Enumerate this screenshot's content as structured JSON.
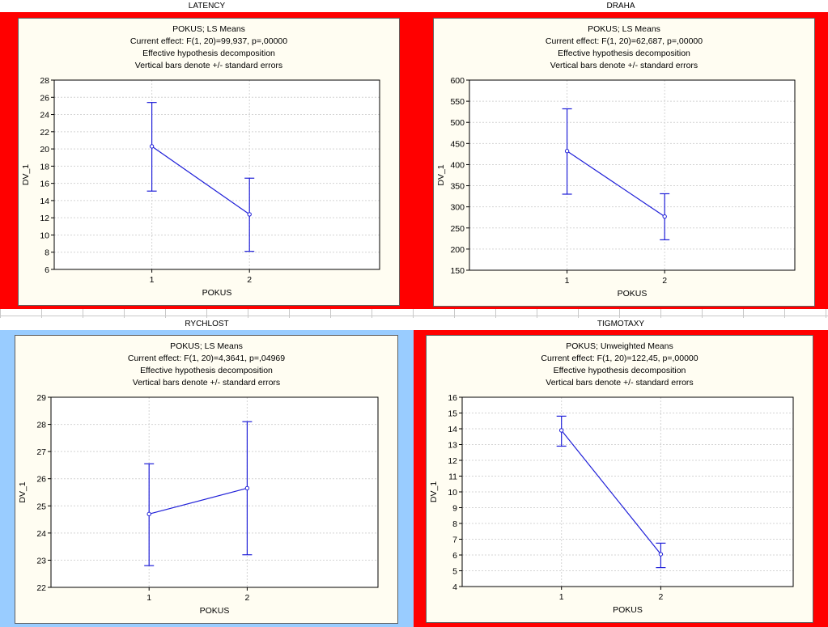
{
  "colors": {
    "frame_red": "#ff0000",
    "frame_blue": "#99ccff",
    "series_line": "#1f1fd8",
    "panel_bg": "#fffdf2"
  },
  "chart_data": [
    {
      "type": "line",
      "sheet_label": "LATENCY",
      "header_lines": [
        "POKUS; LS Means",
        "Current effect: F(1, 20)=99,937, p=,00000",
        "Effective hypothesis decomposition",
        "Vertical bars denote +/- standard errors"
      ],
      "xlabel": "POKUS",
      "ylabel": "DV_1",
      "categories": [
        "1",
        "2"
      ],
      "values": [
        20.3,
        12.4
      ],
      "error_low": [
        15.1,
        8.1
      ],
      "error_high": [
        25.4,
        16.6
      ],
      "ylim": [
        6,
        28
      ],
      "yticks": [
        6,
        8,
        10,
        12,
        14,
        16,
        18,
        20,
        22,
        24,
        26,
        28
      ],
      "frame_color": "#ff0000",
      "grid": true
    },
    {
      "type": "line",
      "sheet_label": "DRAHA",
      "header_lines": [
        "POKUS; LS Means",
        "Current effect: F(1, 20)=62,687, p=,00000",
        "Effective hypothesis decomposition",
        "Vertical bars denote +/- standard errors"
      ],
      "xlabel": "POKUS",
      "ylabel": "DV_1",
      "categories": [
        "1",
        "2"
      ],
      "values": [
        432,
        277
      ],
      "error_low": [
        330,
        222
      ],
      "error_high": [
        532,
        331
      ],
      "ylim": [
        150,
        600
      ],
      "yticks": [
        150,
        200,
        250,
        300,
        350,
        400,
        450,
        500,
        550,
        600
      ],
      "frame_color": "#ff0000",
      "grid": true
    },
    {
      "type": "line",
      "sheet_label": "RYCHLOST",
      "header_lines": [
        "POKUS; LS Means",
        "Current effect: F(1, 20)=4,3641, p=,04969",
        "Effective hypothesis decomposition",
        "Vertical bars denote +/- standard errors"
      ],
      "xlabel": "POKUS",
      "ylabel": "DV_1",
      "categories": [
        "1",
        "2"
      ],
      "values": [
        24.7,
        25.65
      ],
      "error_low": [
        22.8,
        23.2
      ],
      "error_high": [
        26.55,
        28.1
      ],
      "ylim": [
        22,
        29
      ],
      "yticks": [
        22,
        23,
        24,
        25,
        26,
        27,
        28,
        29
      ],
      "frame_color": "#99ccff",
      "grid": true
    },
    {
      "type": "line",
      "sheet_label": "TIGMOTAXY",
      "header_lines": [
        "POKUS; Unweighted Means",
        "Current effect: F(1, 20)=122,45, p=,00000",
        "Effective hypothesis decomposition",
        "Vertical bars denote +/- standard errors"
      ],
      "xlabel": "POKUS",
      "ylabel": "DV_1",
      "categories": [
        "1",
        "2"
      ],
      "values": [
        13.9,
        6.05
      ],
      "error_low": [
        12.9,
        5.2
      ],
      "error_high": [
        14.8,
        6.75
      ],
      "ylim": [
        4,
        16
      ],
      "yticks": [
        4,
        5,
        6,
        7,
        8,
        9,
        10,
        11,
        12,
        13,
        14,
        15,
        16
      ],
      "frame_color": "#ff0000",
      "grid": true
    }
  ]
}
